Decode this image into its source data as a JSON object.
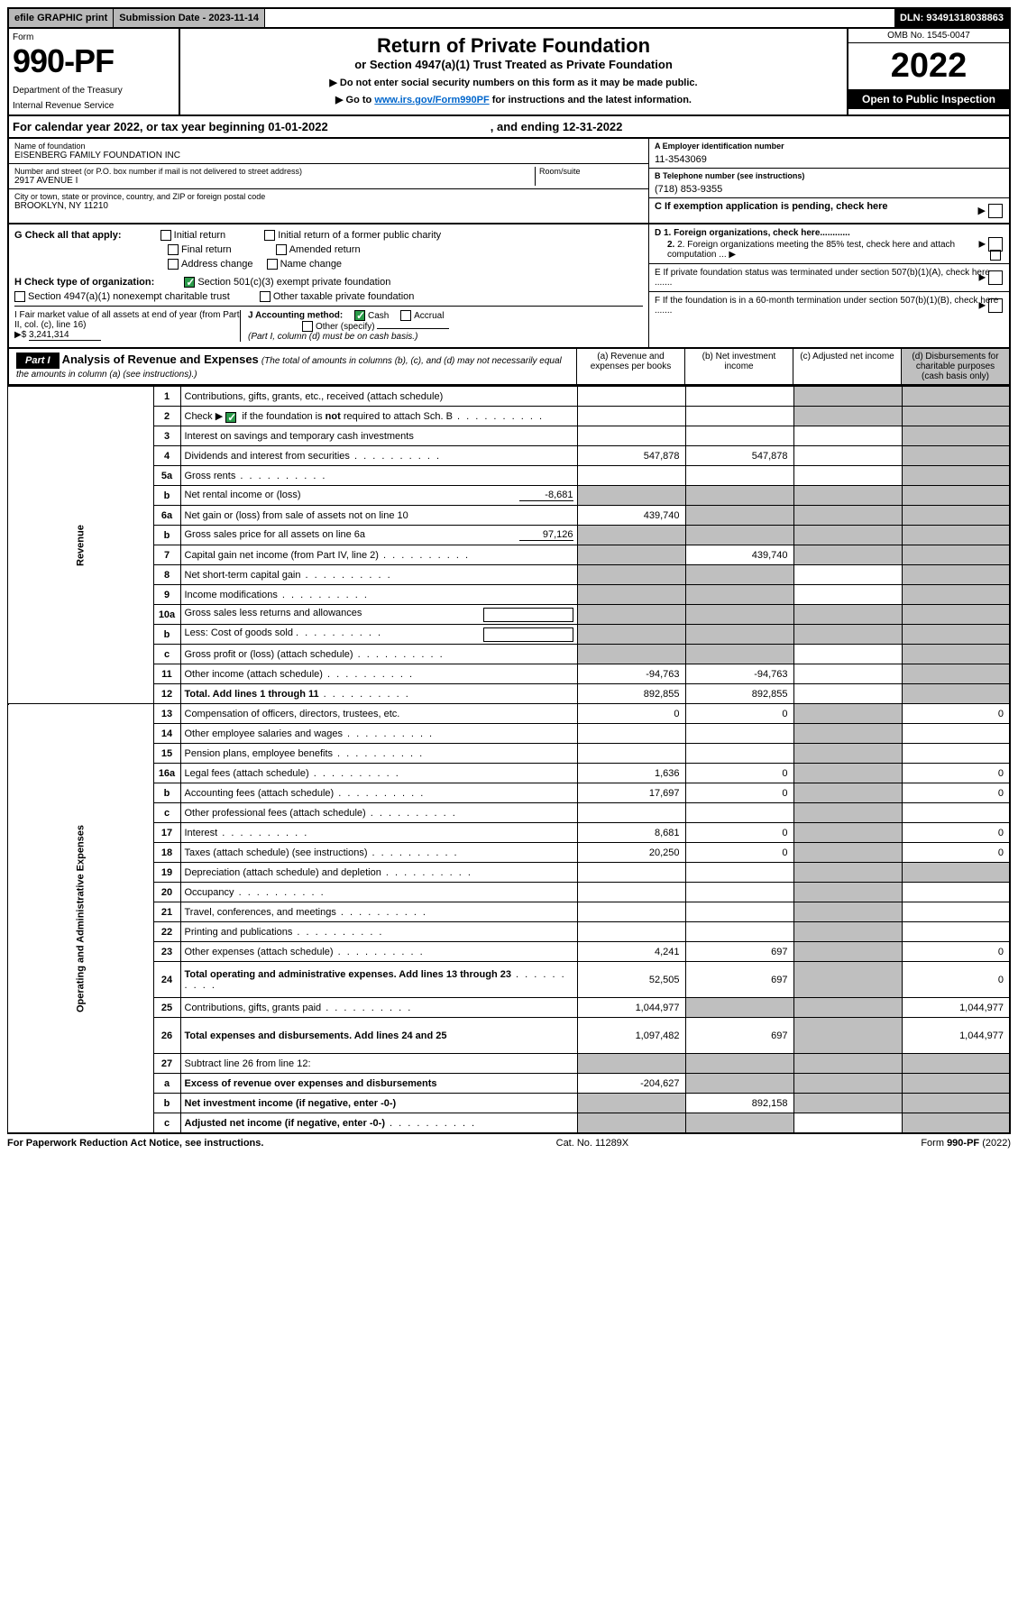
{
  "top": {
    "efile": "efile GRAPHIC print",
    "submission": "Submission Date - 2023-11-14",
    "dln": "DLN: 93491318038863"
  },
  "header": {
    "form_label": "Form",
    "form_num": "990-PF",
    "dept": "Department of the Treasury",
    "irs": "Internal Revenue Service",
    "title": "Return of Private Foundation",
    "subtitle": "or Section 4947(a)(1) Trust Treated as Private Foundation",
    "instr1": "▶ Do not enter social security numbers on this form as it may be made public.",
    "instr2_a": "▶ Go to ",
    "instr2_link": "www.irs.gov/Form990PF",
    "instr2_b": " for instructions and the latest information.",
    "omb": "OMB No. 1545-0047",
    "year": "2022",
    "open": "Open to Public Inspection"
  },
  "cal": {
    "text_a": "For calendar year 2022, or tax year beginning 01-01-2022",
    "text_b": ", and ending 12-31-2022"
  },
  "info": {
    "name_label": "Name of foundation",
    "name": "EISENBERG FAMILY FOUNDATION INC",
    "addr_label": "Number and street (or P.O. box number if mail is not delivered to street address)",
    "room_label": "Room/suite",
    "addr": "2917 AVENUE I",
    "city_label": "City or town, state or province, country, and ZIP or foreign postal code",
    "city": "BROOKLYN, NY  11210",
    "ein_label": "A Employer identification number",
    "ein": "11-3543069",
    "phone_label": "B Telephone number (see instructions)",
    "phone": "(718) 853-9355",
    "exempt_label": "C If exemption application is pending, check here"
  },
  "g": {
    "label": "G Check all that apply:",
    "initial": "Initial return",
    "final": "Final return",
    "addr_change": "Address change",
    "initial_former": "Initial return of a former public charity",
    "amended": "Amended return",
    "name_change": "Name change"
  },
  "h": {
    "label": "H Check type of organization:",
    "501c3": "Section 501(c)(3) exempt private foundation",
    "4947": "Section 4947(a)(1) nonexempt charitable trust",
    "other_tax": "Other taxable private foundation"
  },
  "i": {
    "label_a": "I Fair market value of all assets at end of year (from Part II, col. (c), line 16)",
    "arrow": "▶$",
    "value": "3,241,314"
  },
  "j": {
    "label": "J Accounting method:",
    "cash": "Cash",
    "accrual": "Accrual",
    "other": "Other (specify)",
    "note": "(Part I, column (d) must be on cash basis.)"
  },
  "d": {
    "d1": "D 1. Foreign organizations, check here............",
    "d2": "2. Foreign organizations meeting the 85% test, check here and attach computation ...",
    "e": "E  If private foundation status was terminated under section 507(b)(1)(A), check here .......",
    "f": "F  If the foundation is in a 60-month termination under section 507(b)(1)(B), check here ......."
  },
  "part1": {
    "bar": "Part I",
    "title": "Analysis of Revenue and Expenses",
    "note": "(The total of amounts in columns (b), (c), and (d) may not necessarily equal the amounts in column (a) (see instructions).)",
    "col_a": "(a)   Revenue and expenses per books",
    "col_b": "(b)   Net investment income",
    "col_c": "(c)   Adjusted net income",
    "col_d": "(d)  Disbursements for charitable purposes (cash basis only)"
  },
  "side": {
    "revenue": "Revenue",
    "expenses": "Operating and Administrative Expenses"
  },
  "rows": [
    {
      "n": "1",
      "d": "Contributions, gifts, grants, etc., received (attach schedule)",
      "a": "",
      "b": "",
      "c": "s",
      "ds": "s"
    },
    {
      "n": "2",
      "d": "Check ▶ ☑ if the foundation is not required to attach Sch. B",
      "a": "",
      "b": "",
      "c": "s",
      "ds": "s",
      "dots": true
    },
    {
      "n": "3",
      "d": "Interest on savings and temporary cash investments",
      "a": "",
      "b": "",
      "c": "",
      "ds": "s"
    },
    {
      "n": "4",
      "d": "Dividends and interest from securities",
      "a": "547,878",
      "b": "547,878",
      "c": "",
      "ds": "s",
      "dots": true
    },
    {
      "n": "5a",
      "d": "Gross rents",
      "a": "",
      "b": "",
      "c": "",
      "ds": "s",
      "dots": true
    },
    {
      "n": "b",
      "d": "Net rental income or (loss)",
      "inline": "-8,681",
      "a": "s",
      "b": "s",
      "c": "s",
      "ds": "s"
    },
    {
      "n": "6a",
      "d": "Net gain or (loss) from sale of assets not on line 10",
      "a": "439,740",
      "b": "s",
      "c": "s",
      "ds": "s"
    },
    {
      "n": "b",
      "d": "Gross sales price for all assets on line 6a",
      "inline": "97,126",
      "a": "s",
      "b": "s",
      "c": "s",
      "ds": "s"
    },
    {
      "n": "7",
      "d": "Capital gain net income (from Part IV, line 2)",
      "a": "s",
      "b": "439,740",
      "c": "s",
      "ds": "s",
      "dots": true
    },
    {
      "n": "8",
      "d": "Net short-term capital gain",
      "a": "s",
      "b": "s",
      "c": "",
      "ds": "s",
      "dots": true
    },
    {
      "n": "9",
      "d": "Income modifications",
      "a": "s",
      "b": "s",
      "c": "",
      "ds": "s",
      "dots": true
    },
    {
      "n": "10a",
      "d": "Gross sales less returns and allowances",
      "a": "s",
      "b": "s",
      "c": "s",
      "ds": "s",
      "box": true
    },
    {
      "n": "b",
      "d": "Less: Cost of goods sold",
      "a": "s",
      "b": "s",
      "c": "s",
      "ds": "s",
      "box": true,
      "dots": true
    },
    {
      "n": "c",
      "d": "Gross profit or (loss) (attach schedule)",
      "a": "s",
      "b": "s",
      "c": "",
      "ds": "s",
      "dots": true
    },
    {
      "n": "11",
      "d": "Other income (attach schedule)",
      "a": "-94,763",
      "b": "-94,763",
      "c": "",
      "ds": "s",
      "dots": true
    },
    {
      "n": "12",
      "d": "Total. Add lines 1 through 11",
      "a": "892,855",
      "b": "892,855",
      "c": "",
      "ds": "s",
      "bold": true,
      "dots": true
    }
  ],
  "exprows": [
    {
      "n": "13",
      "d": "Compensation of officers, directors, trustees, etc.",
      "a": "0",
      "b": "0",
      "c": "s",
      "ds": "0"
    },
    {
      "n": "14",
      "d": "Other employee salaries and wages",
      "a": "",
      "b": "",
      "c": "s",
      "ds": "",
      "dots": true
    },
    {
      "n": "15",
      "d": "Pension plans, employee benefits",
      "a": "",
      "b": "",
      "c": "s",
      "ds": "",
      "dots": true
    },
    {
      "n": "16a",
      "d": "Legal fees (attach schedule)",
      "a": "1,636",
      "b": "0",
      "c": "s",
      "ds": "0",
      "dots": true
    },
    {
      "n": "b",
      "d": "Accounting fees (attach schedule)",
      "a": "17,697",
      "b": "0",
      "c": "s",
      "ds": "0",
      "dots": true
    },
    {
      "n": "c",
      "d": "Other professional fees (attach schedule)",
      "a": "",
      "b": "",
      "c": "s",
      "ds": "",
      "dots": true
    },
    {
      "n": "17",
      "d": "Interest",
      "a": "8,681",
      "b": "0",
      "c": "s",
      "ds": "0",
      "dots": true
    },
    {
      "n": "18",
      "d": "Taxes (attach schedule) (see instructions)",
      "a": "20,250",
      "b": "0",
      "c": "s",
      "ds": "0",
      "dots": true
    },
    {
      "n": "19",
      "d": "Depreciation (attach schedule) and depletion",
      "a": "",
      "b": "",
      "c": "s",
      "ds": "s",
      "dots": true
    },
    {
      "n": "20",
      "d": "Occupancy",
      "a": "",
      "b": "",
      "c": "s",
      "ds": "",
      "dots": true
    },
    {
      "n": "21",
      "d": "Travel, conferences, and meetings",
      "a": "",
      "b": "",
      "c": "s",
      "ds": "",
      "dots": true
    },
    {
      "n": "22",
      "d": "Printing and publications",
      "a": "",
      "b": "",
      "c": "s",
      "ds": "",
      "dots": true
    },
    {
      "n": "23",
      "d": "Other expenses (attach schedule)",
      "a": "4,241",
      "b": "697",
      "c": "s",
      "ds": "0",
      "dots": true
    },
    {
      "n": "24",
      "d": "Total operating and administrative expenses. Add lines 13 through 23",
      "a": "52,505",
      "b": "697",
      "c": "s",
      "ds": "0",
      "bold": true,
      "dots": true,
      "tall": true
    },
    {
      "n": "25",
      "d": "Contributions, gifts, grants paid",
      "a": "1,044,977",
      "b": "s",
      "c": "s",
      "ds": "1,044,977",
      "dots": true
    },
    {
      "n": "26",
      "d": "Total expenses and disbursements. Add lines 24 and 25",
      "a": "1,097,482",
      "b": "697",
      "c": "s",
      "ds": "1,044,977",
      "bold": true,
      "tall": true
    },
    {
      "n": "27",
      "d": "Subtract line 26 from line 12:",
      "a": "s",
      "b": "s",
      "c": "s",
      "ds": "s"
    },
    {
      "n": "a",
      "d": "Excess of revenue over expenses and disbursements",
      "a": "-204,627",
      "b": "s",
      "c": "s",
      "ds": "s",
      "bold": true
    },
    {
      "n": "b",
      "d": "Net investment income (if negative, enter -0-)",
      "a": "s",
      "b": "892,158",
      "c": "s",
      "ds": "s",
      "bold": true
    },
    {
      "n": "c",
      "d": "Adjusted net income (if negative, enter -0-)",
      "a": "s",
      "b": "s",
      "c": "",
      "ds": "s",
      "bold": true,
      "dots": true
    }
  ],
  "footer": {
    "left": "For Paperwork Reduction Act Notice, see instructions.",
    "center": "Cat. No. 11289X",
    "right": "Form 990-PF (2022)"
  }
}
